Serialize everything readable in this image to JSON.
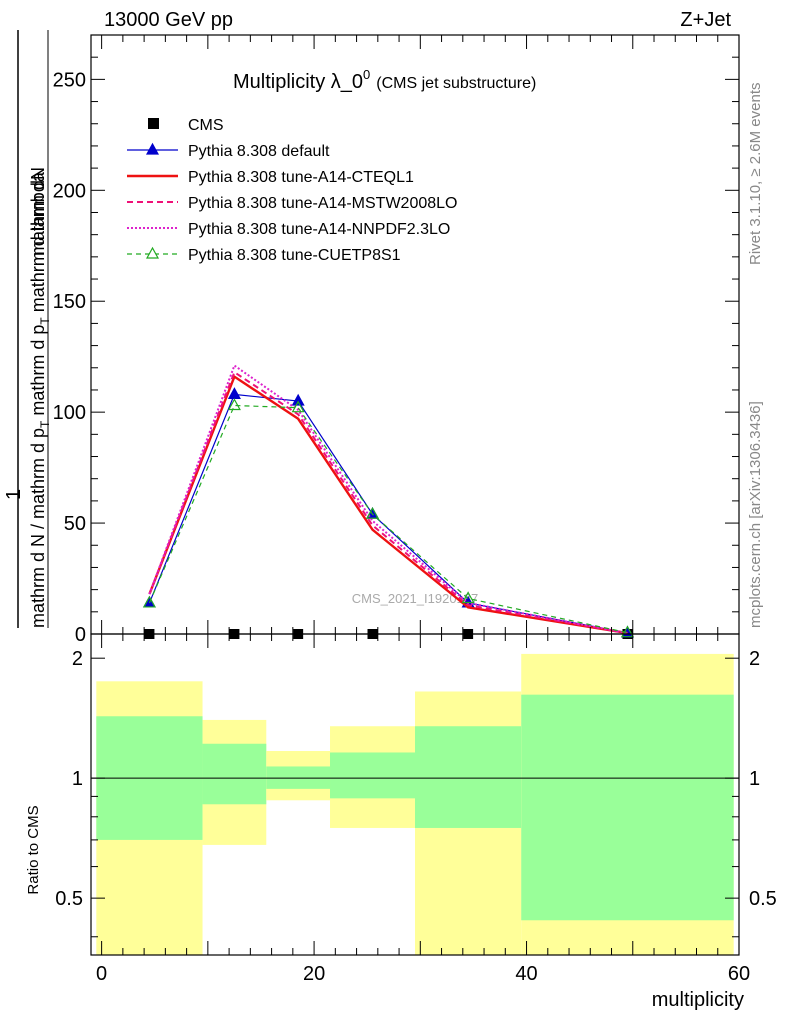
{
  "header": {
    "left_label": "13000 GeV pp",
    "right_label": "Z+Jet"
  },
  "side_labels": {
    "rivet": "Rivet 3.1.10, ≥ 2.6M events",
    "mcplots": "mcplots.cern.ch [arXiv:1306.3436]"
  },
  "watermark": "CMS_2021_I1920187",
  "chart_data": [
    {
      "type": "line",
      "title_main": "Multiplicity λ_0",
      "title_sup": "0",
      "title_sub": "(CMS jet substructure)",
      "ylabel_top": "1",
      "ylabel_num": "mathrm dN",
      "ylabel_den": "mathrm d N / mathrm d p",
      "ylabel_den_sub": "T",
      "ylabel_den2": " mathrm d p",
      "ylabel_den2_sub": "T",
      "ylabel_den3": " mathrm d lambda",
      "ylim": [
        0,
        270
      ],
      "xlim": [
        -1,
        60
      ],
      "yticks": [
        0,
        50,
        100,
        150,
        200,
        250
      ],
      "x": [
        4.5,
        12.5,
        18.5,
        25.5,
        34.5,
        49.5
      ],
      "series": [
        {
          "name": "CMS",
          "style": "data",
          "color": "#000000",
          "values": [
            0,
            0,
            0,
            0,
            0,
            0
          ]
        },
        {
          "name": "Pythia 8.308 default",
          "style": "solid-triangle",
          "color": "#0000cc",
          "values": [
            14,
            108,
            105,
            54,
            14,
            0.5
          ]
        },
        {
          "name": "Pythia 8.308 tune-A14-CTEQL1",
          "style": "solid-thick",
          "color": "#ee1111",
          "values": [
            18,
            116,
            97,
            47,
            12,
            0.4
          ]
        },
        {
          "name": "Pythia 8.308 tune-A14-MSTW2008LO",
          "style": "dashed",
          "color": "#ee1177",
          "values": [
            18,
            118,
            99,
            49,
            13,
            0.4
          ]
        },
        {
          "name": "Pythia 8.308 tune-A14-NNPDF2.3LO",
          "style": "dotted",
          "color": "#dd22cc",
          "values": [
            18,
            121,
            101,
            51,
            14,
            0.4
          ]
        },
        {
          "name": "Pythia 8.308 tune-CUETP8S1",
          "style": "dashed-triangle",
          "color": "#22aa22",
          "values": [
            14,
            103,
            102,
            54,
            16,
            0.6
          ]
        }
      ]
    },
    {
      "type": "bar",
      "ylabel": "Ratio to CMS",
      "xlabel": "multiplicity",
      "xticks": [
        0,
        20,
        40,
        60
      ],
      "yticks": [
        0.5,
        1,
        2
      ],
      "ylim": [
        0.36,
        2.3
      ],
      "xlim": [
        -1,
        60
      ],
      "bins": [
        {
          "xlow": -0.5,
          "xhigh": 9.5,
          "green": [
            0.7,
            1.43
          ],
          "yellow": [
            0.36,
            1.75
          ]
        },
        {
          "xlow": 9.5,
          "xhigh": 15.5,
          "green": [
            0.86,
            1.22
          ],
          "yellow": [
            0.68,
            1.4
          ]
        },
        {
          "xlow": 15.5,
          "xhigh": 21.5,
          "green": [
            0.94,
            1.07
          ],
          "yellow": [
            0.88,
            1.17
          ]
        },
        {
          "xlow": 21.5,
          "xhigh": 29.5,
          "green": [
            0.89,
            1.16
          ],
          "yellow": [
            0.75,
            1.35
          ]
        },
        {
          "xlow": 29.5,
          "xhigh": 39.5,
          "green": [
            0.75,
            1.35
          ],
          "yellow": [
            0.36,
            1.65
          ]
        },
        {
          "xlow": 39.5,
          "xhigh": 59.5,
          "green": [
            0.44,
            1.62
          ],
          "yellow": [
            0.36,
            2.05
          ]
        }
      ]
    }
  ]
}
